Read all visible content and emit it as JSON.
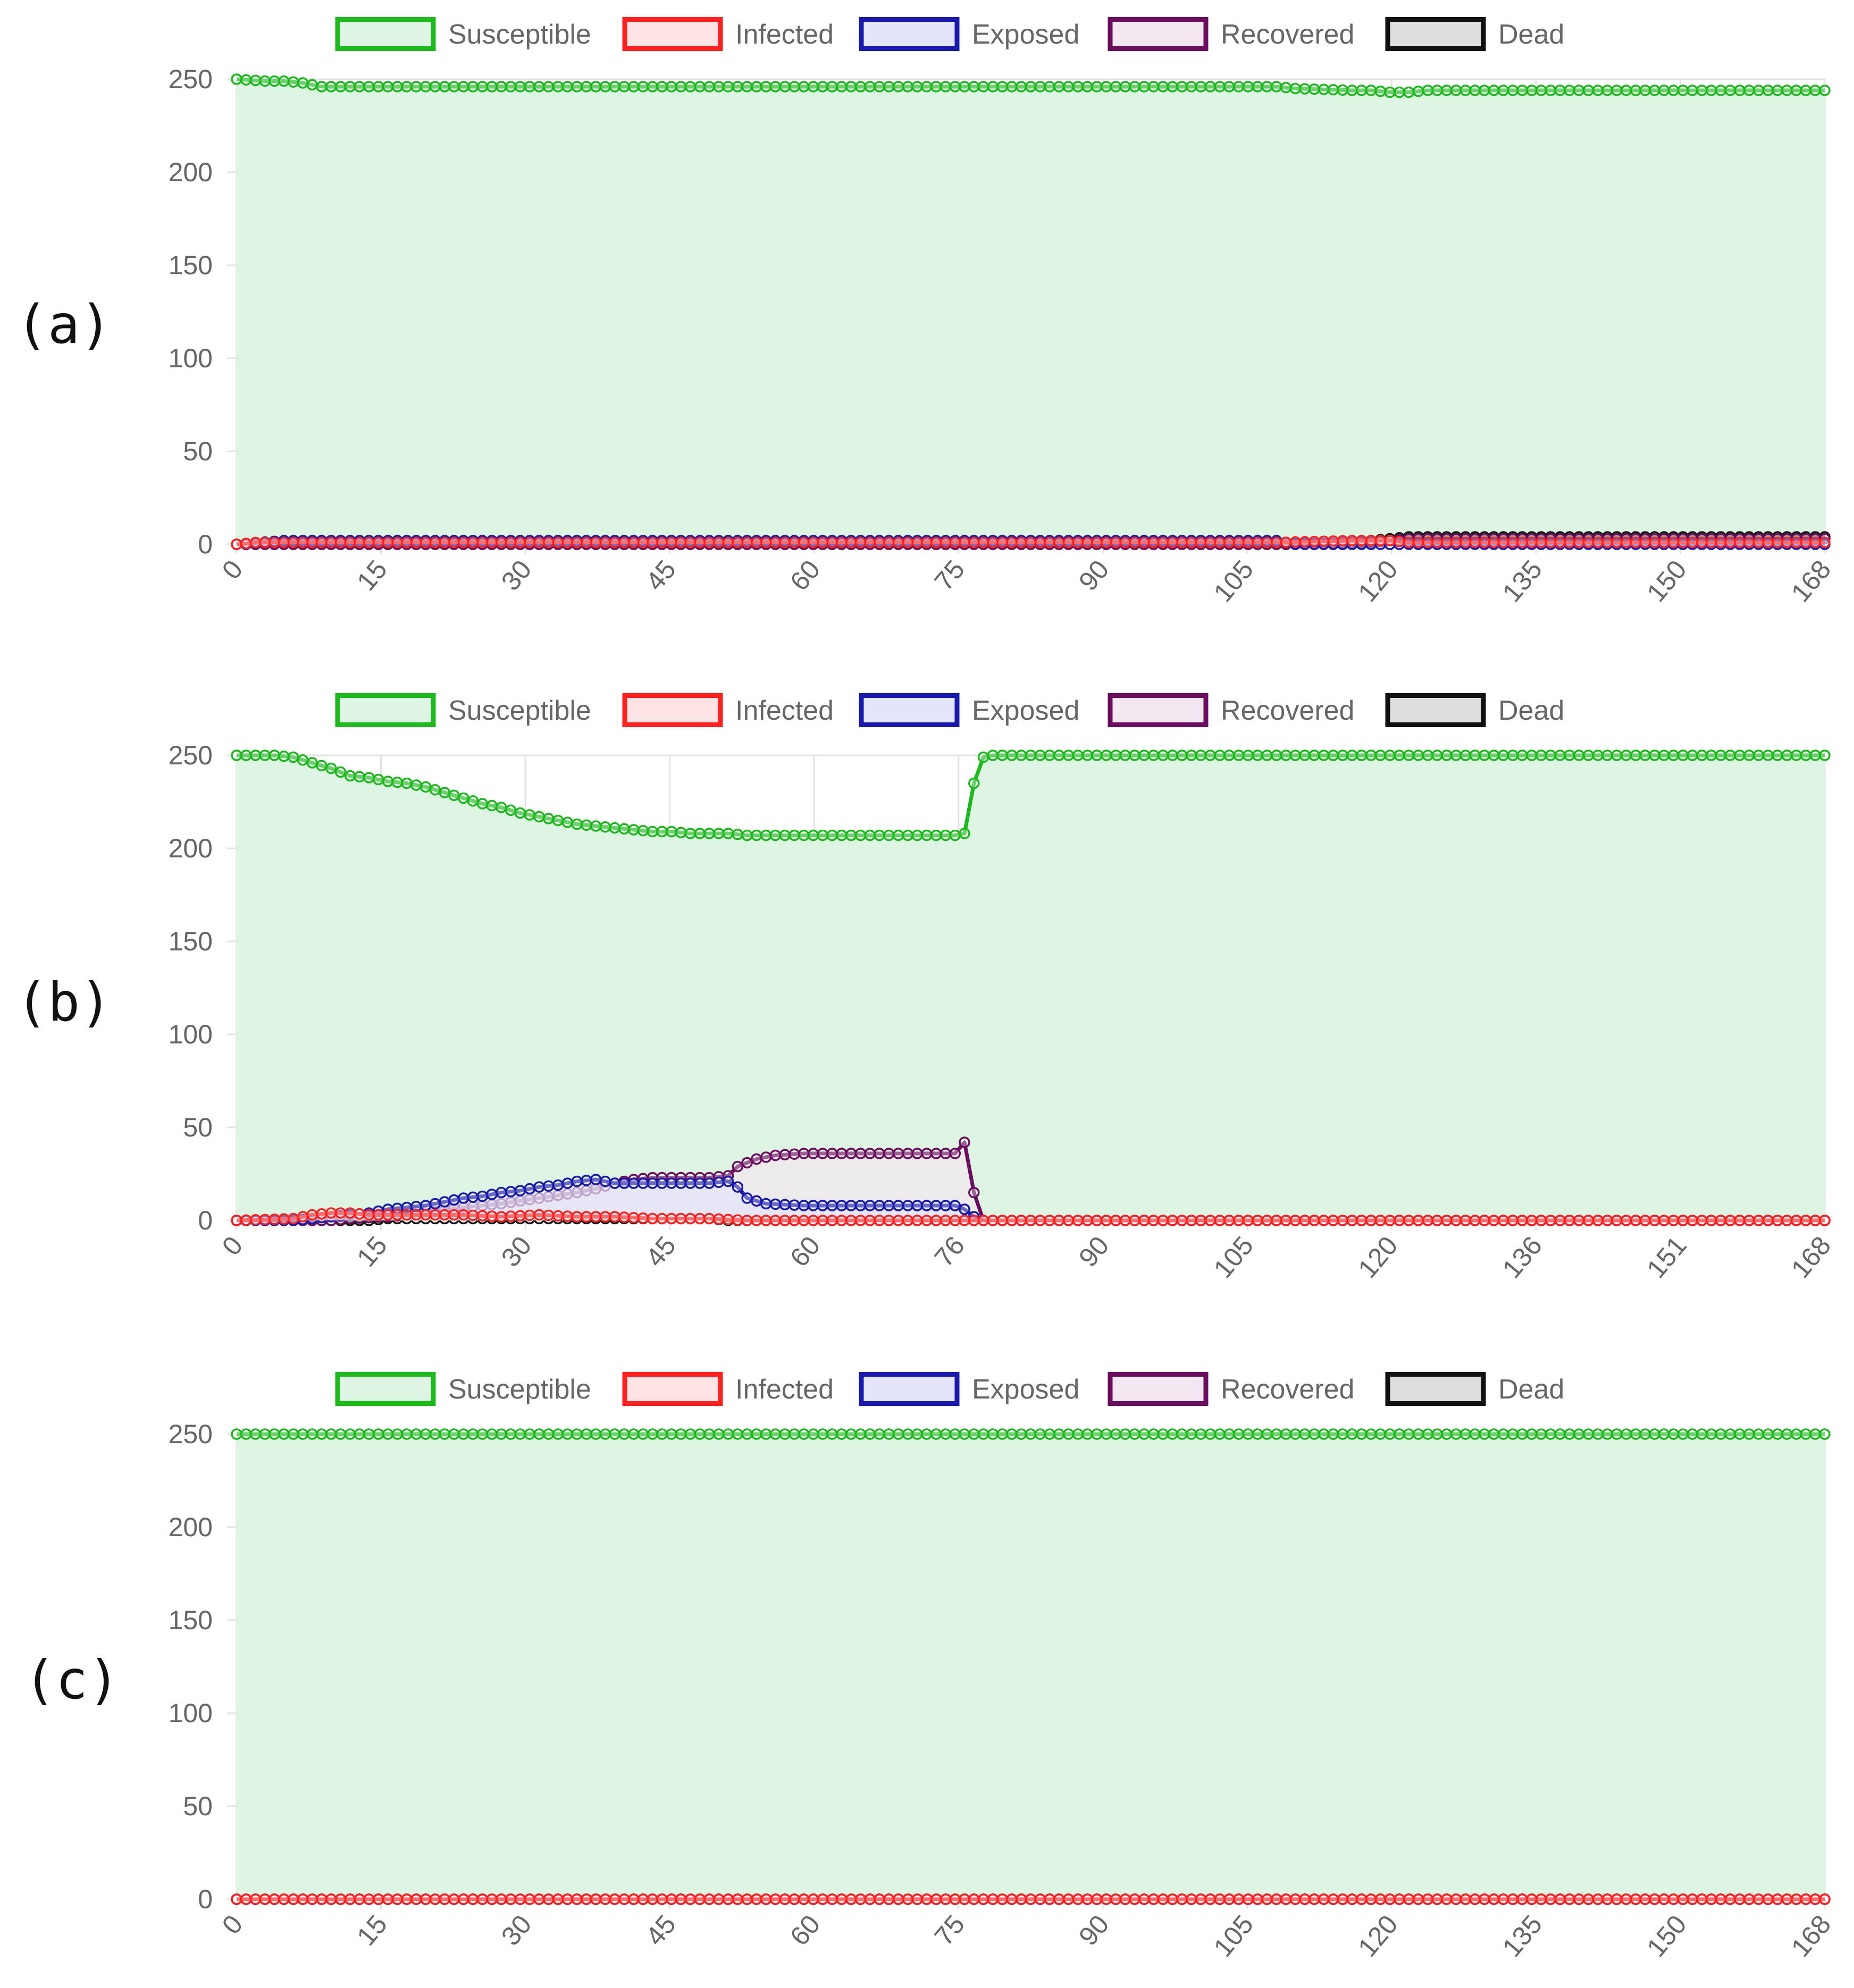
{
  "figure": {
    "panels": [
      "(a)",
      "(b)",
      "(c)"
    ]
  },
  "colors": {
    "Susceptible": {
      "stroke": "#1db81d",
      "fill": "#dff5e3"
    },
    "Infected": {
      "stroke": "#ff2020",
      "fill": "#fde3e3"
    },
    "Exposed": {
      "stroke": "#1a1aaa",
      "fill": "#e4e4fa"
    },
    "Recovered": {
      "stroke": "#6a0d5e",
      "fill": "#f2e6f0"
    },
    "Dead": {
      "stroke": "#111111",
      "fill": "#dedede"
    },
    "grid": "#e3e3e3",
    "tick_text": "#666666"
  },
  "chart_data": [
    {
      "type": "line",
      "panel": "(a)",
      "legend": [
        "Susceptible",
        "Infected",
        "Exposed",
        "Recovered",
        "Dead"
      ],
      "legend_position": "top",
      "x_range": [
        0,
        168
      ],
      "x_tick_labels": [
        "0",
        "15",
        "30",
        "45",
        "60",
        "75",
        "90",
        "105",
        "120",
        "135",
        "150",
        "168"
      ],
      "ylim": [
        0,
        250
      ],
      "y_tick_labels": [
        "0",
        "50",
        "100",
        "150",
        "200",
        "250"
      ],
      "grid": true,
      "series": [
        {
          "name": "Susceptible",
          "points": [
            [
              0,
              250
            ],
            [
              3,
              249
            ],
            [
              5,
              249
            ],
            [
              7,
              248
            ],
            [
              8,
              247
            ],
            [
              9,
              246
            ],
            [
              10,
              246
            ],
            [
              60,
              246
            ],
            [
              110,
              246
            ],
            [
              112,
              245
            ],
            [
              118,
              244
            ],
            [
              120,
              244
            ],
            [
              122,
              243
            ],
            [
              124,
              243
            ],
            [
              126,
              244
            ],
            [
              130,
              244
            ],
            [
              168,
              244
            ]
          ]
        },
        {
          "name": "Infected",
          "points": [
            [
              0,
              0
            ],
            [
              2,
              1
            ],
            [
              110,
              1
            ],
            [
              118,
              2
            ],
            [
              122,
              2
            ],
            [
              124,
              1
            ],
            [
              168,
              1
            ]
          ]
        },
        {
          "name": "Exposed",
          "points": [
            [
              0,
              0
            ],
            [
              5,
              2
            ],
            [
              110,
              2
            ],
            [
              112,
              0
            ],
            [
              168,
              0
            ]
          ]
        },
        {
          "name": "Recovered",
          "points": [
            [
              0,
              0
            ],
            [
              110,
              0
            ],
            [
              120,
              1
            ],
            [
              122,
              2
            ],
            [
              124,
              3
            ],
            [
              168,
              3
            ]
          ]
        },
        {
          "name": "Dead",
          "points": [
            [
              0,
              0
            ],
            [
              118,
              0
            ],
            [
              120,
              2
            ],
            [
              122,
              3
            ],
            [
              124,
              4
            ],
            [
              168,
              4
            ]
          ]
        }
      ]
    },
    {
      "type": "line",
      "panel": "(b)",
      "legend": [
        "Susceptible",
        "Infected",
        "Exposed",
        "Recovered",
        "Dead"
      ],
      "legend_position": "top",
      "x_range": [
        0,
        168
      ],
      "x_tick_labels": [
        "0",
        "15",
        "30",
        "45",
        "60",
        "76",
        "90",
        "105",
        "120",
        "136",
        "151",
        "168"
      ],
      "ylim": [
        0,
        250
      ],
      "y_tick_labels": [
        "0",
        "50",
        "100",
        "150",
        "200",
        "250"
      ],
      "grid": true,
      "series": [
        {
          "name": "Susceptible",
          "points": [
            [
              0,
              250
            ],
            [
              4,
              250
            ],
            [
              6,
              249
            ],
            [
              8,
              246
            ],
            [
              10,
              243
            ],
            [
              12,
              239
            ],
            [
              14,
              238
            ],
            [
              16,
              236
            ],
            [
              18,
              235
            ],
            [
              20,
              233
            ],
            [
              22,
              230
            ],
            [
              24,
              227
            ],
            [
              26,
              224
            ],
            [
              28,
              222
            ],
            [
              30,
              219
            ],
            [
              32,
              217
            ],
            [
              34,
              215
            ],
            [
              36,
              213
            ],
            [
              38,
              212
            ],
            [
              40,
              211
            ],
            [
              42,
              210
            ],
            [
              44,
              209
            ],
            [
              46,
              209
            ],
            [
              48,
              208
            ],
            [
              50,
              208
            ],
            [
              52,
              208
            ],
            [
              54,
              207
            ],
            [
              60,
              207
            ],
            [
              70,
              207
            ],
            [
              76,
              207
            ],
            [
              77,
              208
            ],
            [
              78,
              235
            ],
            [
              79,
              249
            ],
            [
              80,
              250
            ],
            [
              100,
              250
            ],
            [
              168,
              250
            ]
          ]
        },
        {
          "name": "Infected",
          "points": [
            [
              0,
              0
            ],
            [
              6,
              1
            ],
            [
              8,
              3
            ],
            [
              10,
              4
            ],
            [
              12,
              4
            ],
            [
              14,
              3
            ],
            [
              16,
              3
            ],
            [
              20,
              3
            ],
            [
              24,
              3
            ],
            [
              28,
              2
            ],
            [
              32,
              3
            ],
            [
              36,
              2
            ],
            [
              40,
              2
            ],
            [
              44,
              1
            ],
            [
              50,
              1
            ],
            [
              54,
              0
            ],
            [
              168,
              0
            ]
          ]
        },
        {
          "name": "Exposed",
          "points": [
            [
              0,
              0
            ],
            [
              6,
              0
            ],
            [
              8,
              1
            ],
            [
              10,
              2
            ],
            [
              12,
              3
            ],
            [
              14,
              4
            ],
            [
              16,
              6
            ],
            [
              18,
              7
            ],
            [
              20,
              8
            ],
            [
              22,
              10
            ],
            [
              24,
              12
            ],
            [
              26,
              13
            ],
            [
              28,
              15
            ],
            [
              30,
              16
            ],
            [
              32,
              18
            ],
            [
              34,
              19
            ],
            [
              36,
              21
            ],
            [
              38,
              22
            ],
            [
              40,
              20
            ],
            [
              42,
              20
            ],
            [
              50,
              20
            ],
            [
              52,
              21
            ],
            [
              53,
              18
            ],
            [
              54,
              12
            ],
            [
              56,
              9
            ],
            [
              60,
              8
            ],
            [
              70,
              8
            ],
            [
              76,
              8
            ],
            [
              77,
              6
            ],
            [
              78,
              2
            ],
            [
              79,
              0
            ],
            [
              168,
              0
            ]
          ]
        },
        {
          "name": "Recovered",
          "points": [
            [
              0,
              0
            ],
            [
              10,
              0
            ],
            [
              12,
              1
            ],
            [
              16,
              2
            ],
            [
              20,
              4
            ],
            [
              24,
              7
            ],
            [
              28,
              9
            ],
            [
              32,
              12
            ],
            [
              36,
              15
            ],
            [
              38,
              17
            ],
            [
              40,
              20
            ],
            [
              42,
              22
            ],
            [
              44,
              23
            ],
            [
              50,
              23
            ],
            [
              52,
              24
            ],
            [
              53,
              29
            ],
            [
              55,
              33
            ],
            [
              57,
              35
            ],
            [
              60,
              36
            ],
            [
              70,
              36
            ],
            [
              76,
              36
            ],
            [
              77,
              42
            ],
            [
              78,
              15
            ],
            [
              79,
              0
            ],
            [
              168,
              0
            ]
          ]
        },
        {
          "name": "Dead",
          "points": [
            [
              0,
              0
            ],
            [
              14,
              0
            ],
            [
              16,
              1
            ],
            [
              30,
              1
            ],
            [
              50,
              1
            ],
            [
              52,
              0
            ],
            [
              168,
              0
            ]
          ]
        }
      ]
    },
    {
      "type": "line",
      "panel": "(c)",
      "legend": [
        "Susceptible",
        "Infected",
        "Exposed",
        "Recovered",
        "Dead"
      ],
      "legend_position": "top",
      "x_range": [
        0,
        168
      ],
      "x_tick_labels": [
        "0",
        "15",
        "30",
        "45",
        "60",
        "75",
        "90",
        "105",
        "120",
        "135",
        "150",
        "168"
      ],
      "ylim": [
        0,
        250
      ],
      "y_tick_labels": [
        "0",
        "50",
        "100",
        "150",
        "200",
        "250"
      ],
      "grid": true,
      "series": [
        {
          "name": "Susceptible",
          "points": [
            [
              0,
              250
            ],
            [
              168,
              250
            ]
          ]
        },
        {
          "name": "Infected",
          "points": [
            [
              0,
              0
            ],
            [
              168,
              0
            ]
          ]
        },
        {
          "name": "Exposed",
          "points": [
            [
              0,
              0
            ],
            [
              168,
              0
            ]
          ]
        },
        {
          "name": "Recovered",
          "points": [
            [
              0,
              0
            ],
            [
              168,
              0
            ]
          ]
        },
        {
          "name": "Dead",
          "points": [
            [
              0,
              0
            ],
            [
              168,
              0
            ]
          ]
        }
      ]
    }
  ]
}
